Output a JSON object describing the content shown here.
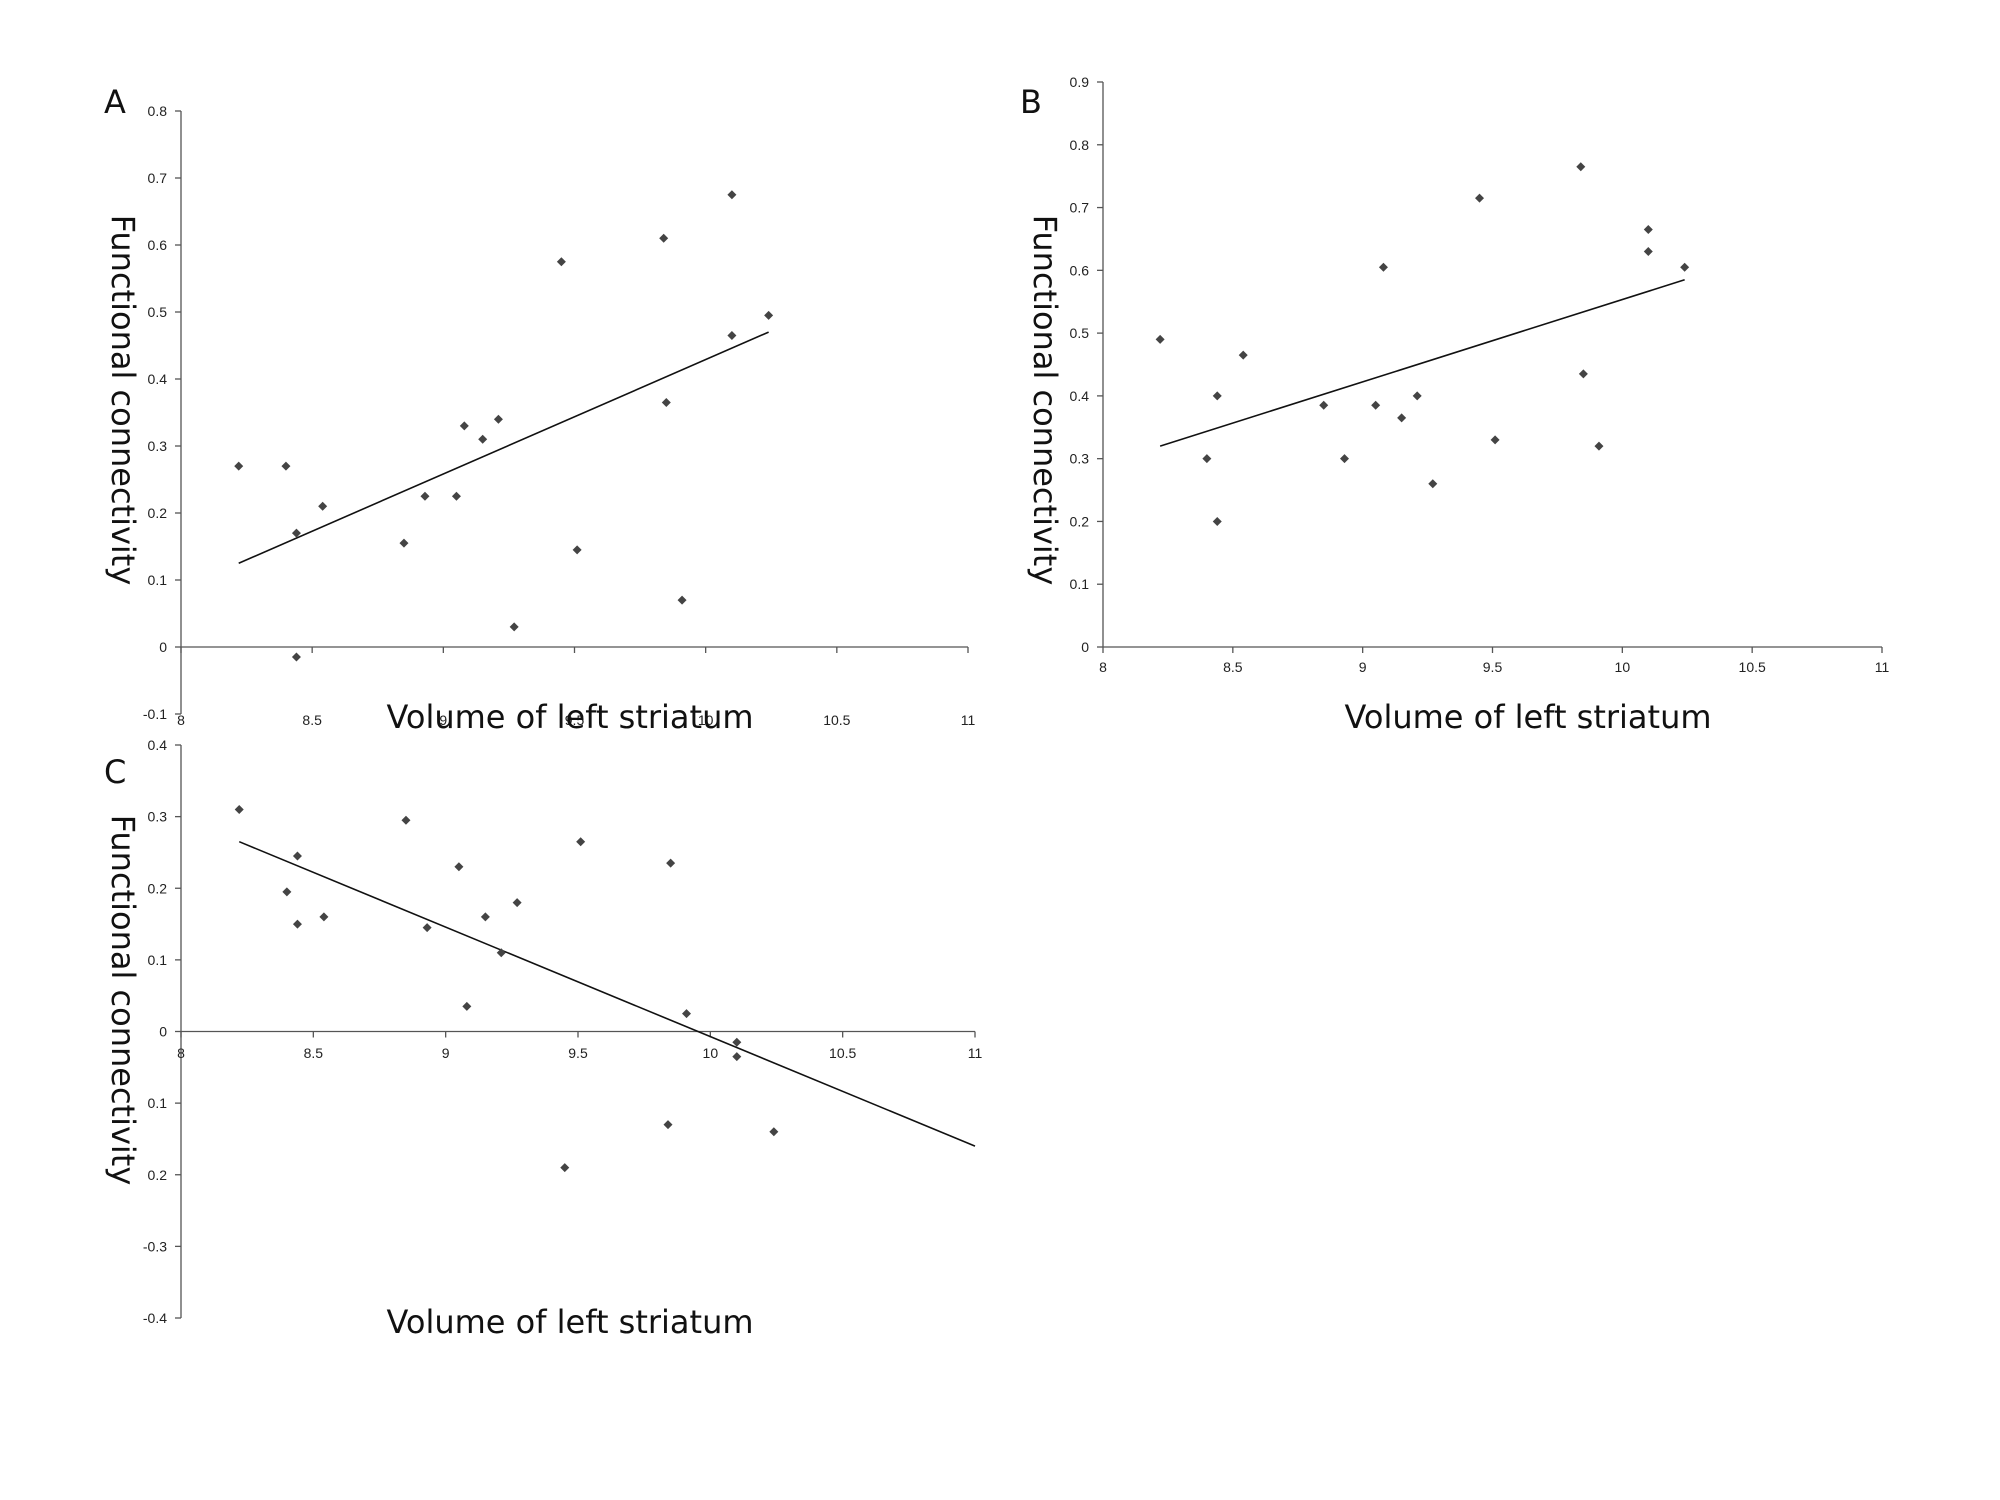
{
  "chart_data": [
    {
      "type": "scatter",
      "panel_label": "A",
      "xlabel": "Volume of left striatum",
      "ylabel": "Functional connectivity",
      "xlim": [
        8,
        11
      ],
      "ylim": [
        -0.1,
        0.8
      ],
      "x_ticks": [
        "8",
        "8.5",
        "9",
        "9.5",
        "10",
        "10.5",
        "11"
      ],
      "y_ticks": [
        "-0.1",
        "0",
        "0.1",
        "0.2",
        "0.3",
        "0.4",
        "0.5",
        "0.6",
        "0.7",
        "0.8"
      ],
      "legend": "none",
      "grid": false,
      "points": [
        {
          "x": 8.22,
          "y": 0.27
        },
        {
          "x": 8.4,
          "y": 0.27
        },
        {
          "x": 8.44,
          "y": 0.17
        },
        {
          "x": 8.44,
          "y": -0.015
        },
        {
          "x": 8.54,
          "y": 0.21
        },
        {
          "x": 8.85,
          "y": 0.155
        },
        {
          "x": 8.93,
          "y": 0.225
        },
        {
          "x": 9.05,
          "y": 0.225
        },
        {
          "x": 9.08,
          "y": 0.33
        },
        {
          "x": 9.15,
          "y": 0.31
        },
        {
          "x": 9.21,
          "y": 0.34
        },
        {
          "x": 9.27,
          "y": 0.03
        },
        {
          "x": 9.45,
          "y": 0.575
        },
        {
          "x": 9.51,
          "y": 0.145
        },
        {
          "x": 9.84,
          "y": 0.61
        },
        {
          "x": 9.85,
          "y": 0.365
        },
        {
          "x": 9.91,
          "y": 0.07
        },
        {
          "x": 10.1,
          "y": 0.675
        },
        {
          "x": 10.1,
          "y": 0.465
        },
        {
          "x": 10.24,
          "y": 0.495
        }
      ],
      "trendline": [
        {
          "x": 8.22,
          "y": 0.125
        },
        {
          "x": 10.24,
          "y": 0.47
        }
      ]
    },
    {
      "type": "scatter",
      "panel_label": "B",
      "xlabel": "Volume of left striatum",
      "ylabel": "Functional connectivity",
      "xlim": [
        8,
        11
      ],
      "ylim": [
        0,
        0.9
      ],
      "x_ticks": [
        "8",
        "8.5",
        "9",
        "9.5",
        "10",
        "10.5",
        "11"
      ],
      "y_ticks": [
        "0",
        "0.1",
        "0.2",
        "0.3",
        "0.4",
        "0.5",
        "0.6",
        "0.7",
        "0.8",
        "0.9"
      ],
      "legend": "none",
      "grid": false,
      "points": [
        {
          "x": 8.22,
          "y": 0.49
        },
        {
          "x": 8.4,
          "y": 0.3
        },
        {
          "x": 8.44,
          "y": 0.4
        },
        {
          "x": 8.44,
          "y": 0.2
        },
        {
          "x": 8.54,
          "y": 0.465
        },
        {
          "x": 8.85,
          "y": 0.385
        },
        {
          "x": 8.93,
          "y": 0.3
        },
        {
          "x": 9.05,
          "y": 0.385
        },
        {
          "x": 9.08,
          "y": 0.605
        },
        {
          "x": 9.15,
          "y": 0.365
        },
        {
          "x": 9.21,
          "y": 0.4
        },
        {
          "x": 9.27,
          "y": 0.26
        },
        {
          "x": 9.45,
          "y": 0.715
        },
        {
          "x": 9.51,
          "y": 0.33
        },
        {
          "x": 9.84,
          "y": 0.765
        },
        {
          "x": 9.85,
          "y": 0.435
        },
        {
          "x": 9.91,
          "y": 0.32
        },
        {
          "x": 10.1,
          "y": 0.665
        },
        {
          "x": 10.1,
          "y": 0.63
        },
        {
          "x": 10.24,
          "y": 0.605
        }
      ],
      "trendline": [
        {
          "x": 8.22,
          "y": 0.32
        },
        {
          "x": 10.24,
          "y": 0.585
        }
      ]
    },
    {
      "type": "scatter",
      "panel_label": "C",
      "xlabel": "Volume of left striatum",
      "ylabel": "Functional connectivity",
      "xlim": [
        8,
        11
      ],
      "ylim": [
        -0.4,
        0.4
      ],
      "x_ticks": [
        "8",
        "8.5",
        "9",
        "9.5",
        "10",
        "10.5",
        "11"
      ],
      "y_ticks": [
        "-0.4",
        "-0.3",
        "0.2",
        "0.1",
        "0",
        "0.1",
        "0.2",
        "0.3",
        "0.4"
      ],
      "legend": "none",
      "grid": false,
      "points": [
        {
          "x": 8.22,
          "y": 0.31
        },
        {
          "x": 8.4,
          "y": 0.195
        },
        {
          "x": 8.44,
          "y": 0.245
        },
        {
          "x": 8.44,
          "y": 0.15
        },
        {
          "x": 8.54,
          "y": 0.16
        },
        {
          "x": 8.85,
          "y": 0.295
        },
        {
          "x": 8.93,
          "y": 0.145
        },
        {
          "x": 9.05,
          "y": 0.23
        },
        {
          "x": 9.08,
          "y": 0.035
        },
        {
          "x": 9.15,
          "y": 0.16
        },
        {
          "x": 9.21,
          "y": 0.11
        },
        {
          "x": 9.27,
          "y": 0.18
        },
        {
          "x": 9.45,
          "y": -0.19
        },
        {
          "x": 9.51,
          "y": 0.265
        },
        {
          "x": 9.84,
          "y": -0.13
        },
        {
          "x": 9.85,
          "y": 0.235
        },
        {
          "x": 9.91,
          "y": 0.025
        },
        {
          "x": 10.1,
          "y": -0.015
        },
        {
          "x": 10.1,
          "y": -0.035
        },
        {
          "x": 10.24,
          "y": -0.14
        }
      ],
      "trendline": [
        {
          "x": 8.22,
          "y": 0.265
        },
        {
          "x": 11,
          "y": -0.16
        }
      ]
    }
  ]
}
